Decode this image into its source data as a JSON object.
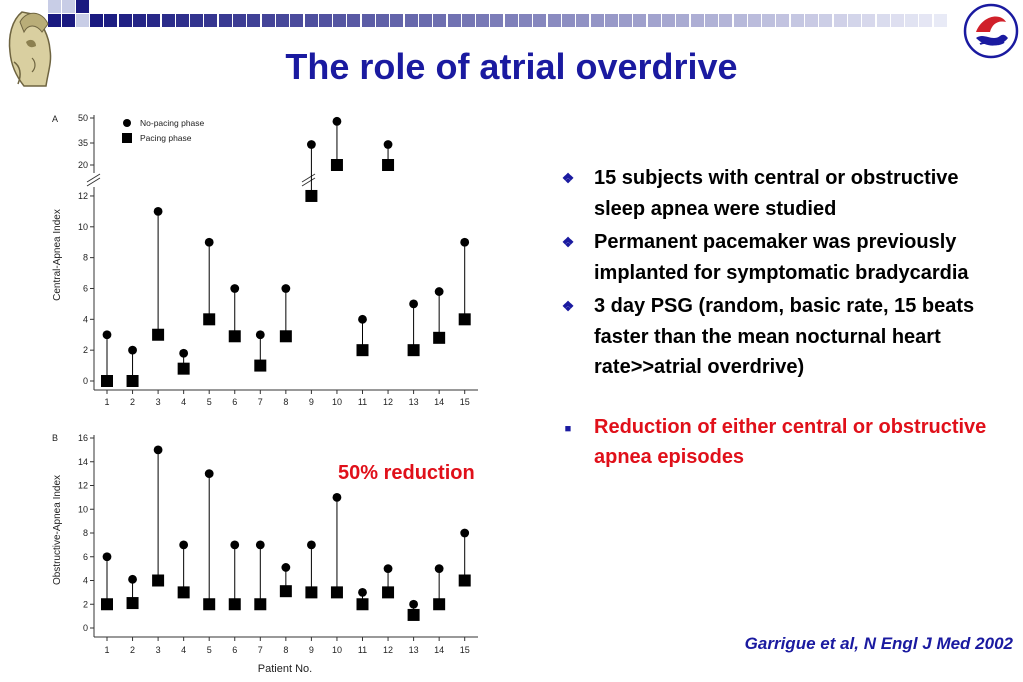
{
  "slide": {
    "title": "The role of atrial overdrive",
    "annotation": "50% reduction",
    "citation": "Garrigue et al, N Engl J Med 2002",
    "bullets": [
      {
        "text": "15 subjects with central or obstructive sleep apnea  were studied",
        "marker": "diamond-bullet"
      },
      {
        "text": "Permanent pacemaker was previously implanted for symptomatic bradycardia",
        "marker": "diamond-bullet"
      },
      {
        "text": "3 day PSG (random, basic rate, 15 beats faster than the mean nocturnal heart rate>>atrial overdrive)",
        "marker": "diamond-bullet"
      },
      {
        "text": "Reduction of either central or obstructive apnea episodes",
        "marker": "square-bullet",
        "color": "#e0101a"
      }
    ],
    "colors": {
      "title": "#1a1aa0",
      "highlight": "#e0101a",
      "band_dark": "#1a1a80",
      "band_light": "#c8cde6"
    },
    "icons": {
      "left_logo": "athena-head-logo",
      "right_logo": "society-emblem-logo"
    }
  },
  "chart_data": [
    {
      "type": "scatter",
      "panel_label": "A",
      "xlabel": "",
      "ylabel": "Central-Apnea Index",
      "categories": [
        "1",
        "2",
        "3",
        "4",
        "5",
        "6",
        "7",
        "8",
        "9",
        "10",
        "11",
        "12",
        "13",
        "14",
        "15"
      ],
      "y_ticks": [
        "0",
        "2",
        "4",
        "6",
        "8",
        "10",
        "12"
      ],
      "y_break_ticks": [
        "20",
        "35",
        "50"
      ],
      "ylim": [
        0,
        12
      ],
      "ylim_upper": [
        20,
        50
      ],
      "axis_break": true,
      "legend_position": "top-left",
      "series": [
        {
          "name": "No-pacing phase",
          "marker": "circle",
          "values": [
            3,
            2,
            11,
            1.8,
            9,
            6,
            3,
            6,
            34,
            48,
            4,
            34,
            5,
            5.8,
            9
          ]
        },
        {
          "name": "Pacing phase",
          "marker": "square",
          "values": [
            0,
            0,
            3,
            0.8,
            4,
            2.9,
            1,
            2.9,
            12,
            13,
            2,
            14,
            2,
            2.8,
            4
          ]
        }
      ]
    },
    {
      "type": "scatter",
      "panel_label": "B",
      "xlabel": "Patient No.",
      "ylabel": "Obstructive-Apnea Index",
      "categories": [
        "1",
        "2",
        "3",
        "4",
        "5",
        "6",
        "7",
        "8",
        "9",
        "10",
        "11",
        "12",
        "13",
        "14",
        "15"
      ],
      "y_ticks": [
        "0",
        "2",
        "4",
        "6",
        "8",
        "10",
        "12",
        "14",
        "16"
      ],
      "ylim": [
        0,
        16
      ],
      "series": [
        {
          "name": "No-pacing phase",
          "marker": "circle",
          "values": [
            6,
            4.1,
            15,
            7,
            13,
            7,
            7,
            5.1,
            7,
            11,
            3,
            5,
            2,
            5,
            8
          ]
        },
        {
          "name": "Pacing phase",
          "marker": "square",
          "values": [
            2,
            2.1,
            4,
            3,
            2,
            2,
            2,
            3.1,
            3,
            3,
            2,
            3,
            1.1,
            2,
            4
          ]
        }
      ]
    }
  ]
}
